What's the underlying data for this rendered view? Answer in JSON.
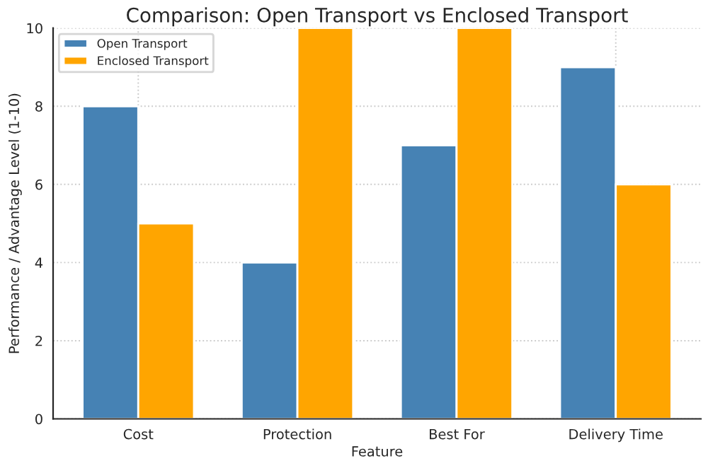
{
  "chart_data": {
    "type": "bar",
    "title": "Comparison: Open Transport vs Enclosed Transport",
    "xlabel": "Feature",
    "ylabel": "Performance / Advantage Level (1-10)",
    "categories": [
      "Cost",
      "Protection",
      "Best For",
      "Delivery Time"
    ],
    "series": [
      {
        "name": "Open Transport",
        "color": "#4682b4",
        "values": [
          8,
          4,
          7,
          9
        ]
      },
      {
        "name": "Enclosed Transport",
        "color": "#ffa500",
        "values": [
          5,
          10,
          10,
          6
        ]
      }
    ],
    "ylim": [
      0,
      10
    ],
    "yticks": [
      0,
      2,
      4,
      6,
      8,
      10
    ],
    "grid": true,
    "legend": "top left"
  }
}
